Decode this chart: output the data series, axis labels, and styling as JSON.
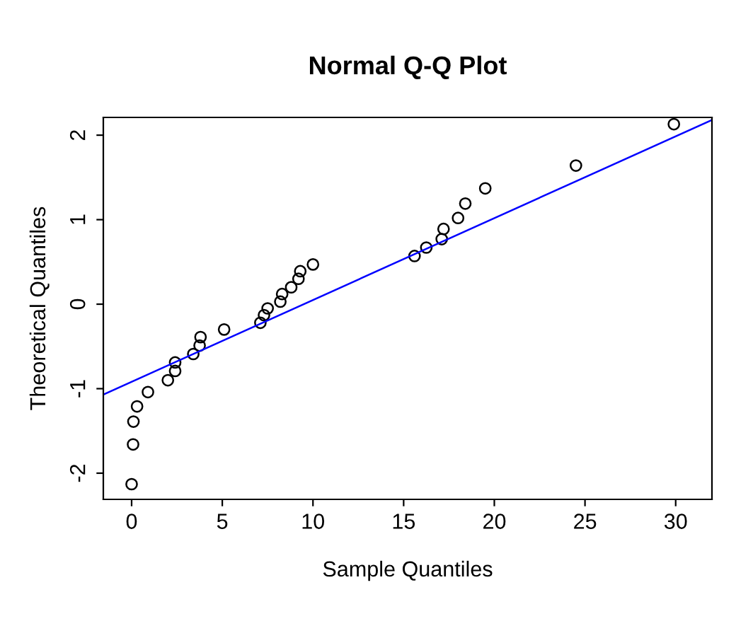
{
  "chart_data": {
    "type": "scatter",
    "title": "Normal Q-Q Plot",
    "xlabel": "Sample Quantiles",
    "ylabel": "Theoretical Quantiles",
    "xlim": [
      -1.56,
      32.0
    ],
    "ylim": [
      -2.31,
      2.21
    ],
    "xticks": [
      0,
      5,
      10,
      15,
      20,
      25,
      30
    ],
    "yticks": [
      -2,
      -1,
      0,
      1,
      2
    ],
    "grid": false,
    "series": [
      {
        "marker": "circle",
        "color": "#000000",
        "x": [
          0.0,
          0.08,
          0.1,
          0.3,
          0.9,
          2.0,
          2.4,
          2.4,
          3.4,
          3.75,
          3.8,
          5.1,
          7.1,
          7.3,
          7.5,
          8.2,
          8.3,
          8.8,
          9.2,
          9.3,
          10.0,
          15.6,
          16.25,
          17.1,
          17.2,
          18.0,
          18.4,
          19.5,
          24.5,
          29.9
        ],
        "values": [
          -2.13,
          -1.66,
          -1.39,
          -1.21,
          -1.04,
          -0.9,
          -0.79,
          -0.69,
          -0.59,
          -0.49,
          -0.39,
          -0.3,
          -0.22,
          -0.13,
          -0.05,
          0.03,
          0.12,
          0.2,
          0.3,
          0.39,
          0.47,
          0.57,
          0.67,
          0.77,
          0.89,
          1.02,
          1.19,
          1.37,
          1.64,
          2.13
        ]
      },
      {
        "type": "line",
        "color": "#0000ff",
        "x": [
          -1.56,
          32.0
        ],
        "values": [
          -1.07,
          2.18
        ]
      }
    ]
  }
}
